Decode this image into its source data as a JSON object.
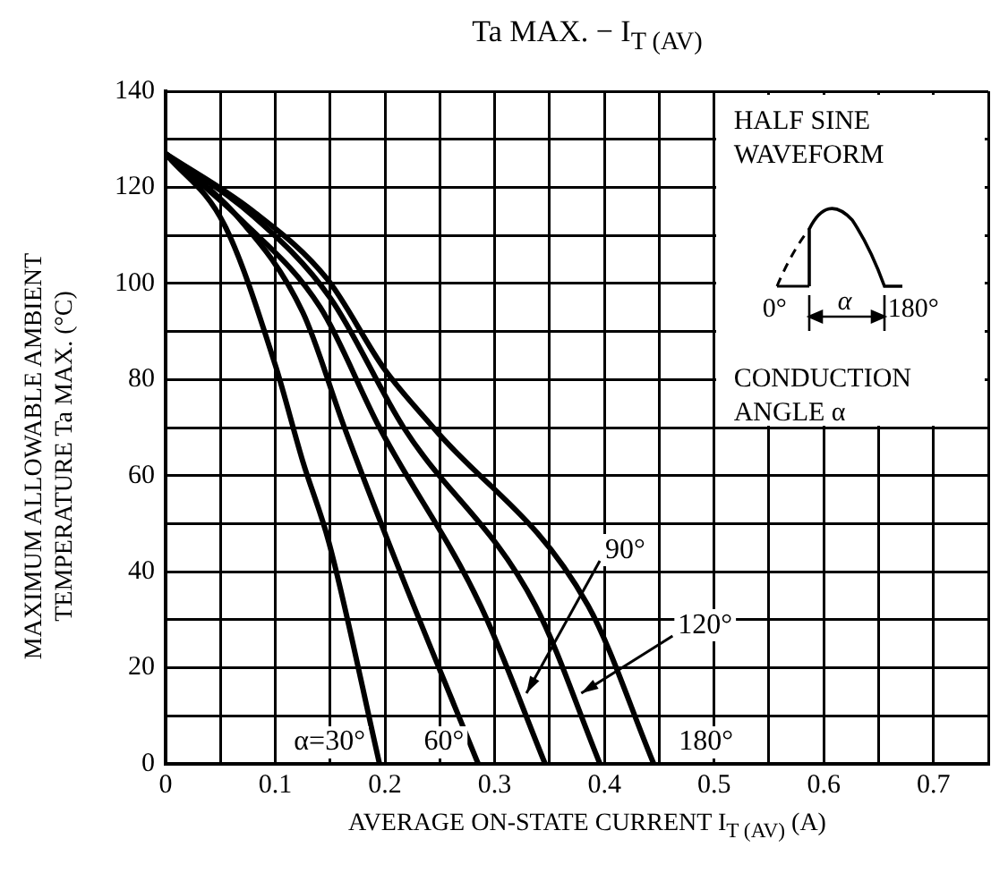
{
  "chart_data": {
    "type": "line",
    "title": "Ta MAX. − I$_{T (AV)}$",
    "xlabel": "AVERAGE ON-STATE CURRENT  I$_{T (AV)}$  (A)",
    "ylabel": "MAXIMUM ALLOWABLE AMBIENT\nTEMPERATURE  Ta MAX.  (°C)",
    "annotations": [
      "HALF SINE\nWAVEFORM",
      "0°",
      "α",
      "180°",
      "CONDUCTION\nANGLE α"
    ],
    "series": [
      {
        "name": "α=30°",
        "color": "#000000",
        "x": [
          0,
          0.054,
          0.1,
          0.125,
          0.149,
          0.195
        ],
        "values": [
          127,
          112,
          83,
          63,
          46,
          0
        ]
      },
      {
        "name": "60°",
        "color": "#000000",
        "x": [
          0,
          0.065,
          0.125,
          0.163,
          0.212,
          0.285
        ],
        "values": [
          127,
          114,
          94,
          70,
          41,
          0
        ]
      },
      {
        "name": "90°",
        "color": "#000000",
        "x": [
          0,
          0.07,
          0.141,
          0.195,
          0.287,
          0.346
        ],
        "values": [
          127,
          113,
          95,
          70,
          33,
          0
        ]
      },
      {
        "name": "120°",
        "color": "#000000",
        "x": [
          0,
          0.08,
          0.15,
          0.217,
          0.337,
          0.396
        ],
        "values": [
          127,
          114,
          97,
          70,
          33,
          0
        ]
      },
      {
        "name": "180°",
        "color": "#000000",
        "x": [
          0,
          0.08,
          0.147,
          0.2,
          0.244,
          0.385,
          0.445
        ],
        "values": [
          127,
          115,
          101,
          82,
          70,
          33,
          0
        ]
      }
    ],
    "xlim": [
      0,
      0.75
    ],
    "xticks": [
      0,
      {
        "value": 0.05,
        "label": null
      },
      0.1,
      {
        "value": 0.15,
        "label": null
      },
      0.2,
      {
        "value": 0.25,
        "label": null
      },
      0.3,
      {
        "value": 0.35,
        "label": null
      },
      0.4,
      {
        "value": 0.45,
        "label": null
      },
      0.5,
      {
        "value": 0.55,
        "label": null
      },
      0.6,
      {
        "value": 0.65,
        "label": null
      },
      0.7,
      {
        "value": 0.75,
        "label": null
      }
    ],
    "ylim": [
      0,
      140
    ],
    "yticks": [
      0,
      {
        "value": 10,
        "label": null
      },
      20,
      {
        "value": 30,
        "label": null
      },
      40,
      {
        "value": 50,
        "label": null
      },
      60,
      {
        "value": 70,
        "label": null
      },
      80,
      {
        "value": 90,
        "label": null
      },
      100,
      {
        "value": 110,
        "label": null
      },
      120,
      {
        "value": 130,
        "label": null
      },
      140
    ],
    "grid": true,
    "legend": false,
    "marker": "none",
    "line_style": "solid"
  }
}
